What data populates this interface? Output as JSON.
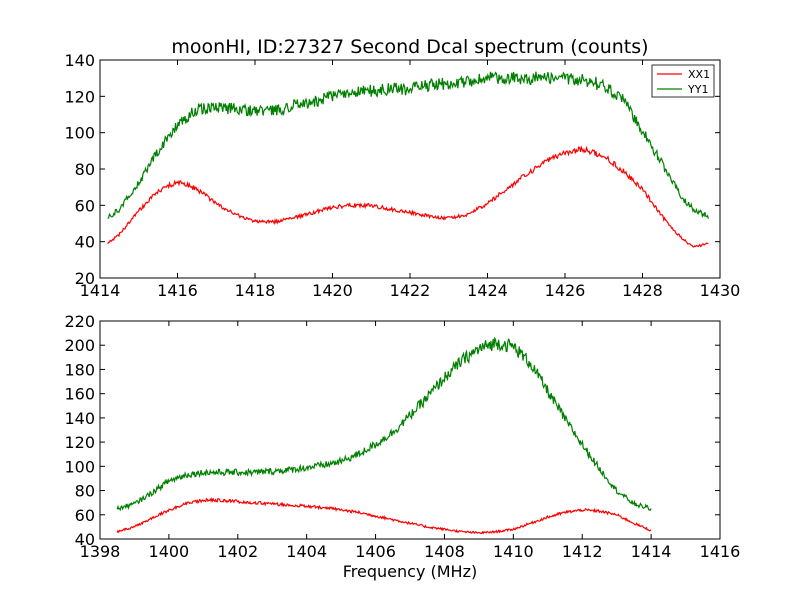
{
  "chart_data": [
    {
      "type": "line",
      "title": "moonHI, ID:27327 Second Dcal spectrum (counts)",
      "xlabel": "",
      "ylabel": "",
      "xlim": [
        1414,
        1430
      ],
      "ylim": [
        20,
        140
      ],
      "xticks": [
        "1414",
        "1416",
        "1418",
        "1420",
        "1422",
        "1424",
        "1426",
        "1428",
        "1430"
      ],
      "yticks": [
        "20",
        "40",
        "60",
        "80",
        "100",
        "120",
        "140"
      ],
      "legend": {
        "placement": "top-right",
        "entries": [
          "XX1",
          "YY1"
        ]
      },
      "grid": false,
      "series": [
        {
          "name": "XX1",
          "color": "#ff0000",
          "x": [
            1414.2,
            1414.5,
            1415.0,
            1415.5,
            1416.0,
            1416.5,
            1417.0,
            1417.5,
            1418.0,
            1418.5,
            1419.0,
            1419.5,
            1420.0,
            1420.5,
            1421.0,
            1421.5,
            1422.0,
            1422.5,
            1423.0,
            1423.5,
            1424.0,
            1424.5,
            1425.0,
            1425.5,
            1426.0,
            1426.5,
            1427.0,
            1427.5,
            1428.0,
            1428.5,
            1429.0,
            1429.3,
            1429.7
          ],
          "y": [
            39,
            44,
            57,
            68,
            73,
            69,
            61,
            55,
            51,
            51,
            53,
            56,
            59,
            60,
            60,
            58,
            56,
            54,
            53,
            55,
            61,
            69,
            77,
            84,
            89,
            91,
            87,
            79,
            69,
            54,
            42,
            37,
            39
          ]
        },
        {
          "name": "YY1",
          "color": "#008000",
          "x": [
            1414.2,
            1414.5,
            1415.0,
            1415.5,
            1416.0,
            1416.5,
            1417.0,
            1417.5,
            1418.0,
            1418.5,
            1419.0,
            1419.5,
            1420.0,
            1420.5,
            1421.0,
            1421.5,
            1422.0,
            1422.5,
            1423.0,
            1423.5,
            1424.0,
            1424.5,
            1425.0,
            1425.5,
            1426.0,
            1426.5,
            1427.0,
            1427.5,
            1428.0,
            1428.5,
            1429.0,
            1429.3,
            1429.7
          ],
          "y": [
            53,
            58,
            72,
            90,
            104,
            113,
            114,
            113,
            112,
            112,
            115,
            117,
            120,
            122,
            123,
            124,
            124,
            126,
            127,
            128,
            130,
            130,
            130,
            130,
            130,
            129,
            126,
            118,
            101,
            83,
            65,
            58,
            54
          ]
        }
      ]
    },
    {
      "type": "line",
      "title": "",
      "xlabel": "Frequency (MHz)",
      "ylabel": "",
      "xlim": [
        1398,
        1416
      ],
      "ylim": [
        40,
        220
      ],
      "xticks": [
        "1398",
        "1400",
        "1402",
        "1404",
        "1406",
        "1408",
        "1410",
        "1412",
        "1414",
        "1416"
      ],
      "yticks": [
        "40",
        "60",
        "80",
        "100",
        "120",
        "140",
        "160",
        "180",
        "200",
        "220"
      ],
      "grid": false,
      "series": [
        {
          "color": "#ff0000",
          "x": [
            1398.5,
            1399.0,
            1399.5,
            1400.0,
            1400.5,
            1401.0,
            1401.5,
            1402.0,
            1402.5,
            1403.0,
            1403.5,
            1404.0,
            1404.5,
            1405.0,
            1405.5,
            1406.0,
            1406.5,
            1407.0,
            1407.5,
            1408.0,
            1408.5,
            1409.0,
            1409.5,
            1410.0,
            1410.5,
            1411.0,
            1411.5,
            1412.0,
            1412.5,
            1413.0,
            1413.5,
            1414.0
          ],
          "y": [
            46,
            50,
            57,
            64,
            69,
            72,
            72,
            71,
            70,
            69,
            68,
            67,
            66,
            64,
            62,
            59,
            56,
            53,
            50,
            48,
            46,
            45,
            46,
            48,
            53,
            58,
            62,
            64,
            63,
            60,
            53,
            47
          ]
        },
        {
          "color": "#008000",
          "x": [
            1398.5,
            1399.0,
            1399.5,
            1400.0,
            1400.5,
            1401.0,
            1401.5,
            1402.0,
            1402.5,
            1403.0,
            1403.5,
            1404.0,
            1404.5,
            1405.0,
            1405.5,
            1406.0,
            1406.5,
            1407.0,
            1407.5,
            1408.0,
            1408.5,
            1409.0,
            1409.5,
            1410.0,
            1410.5,
            1411.0,
            1411.5,
            1412.0,
            1412.5,
            1413.0,
            1413.5,
            1414.0
          ],
          "y": [
            65,
            69,
            78,
            88,
            93,
            95,
            95,
            95,
            95,
            96,
            97,
            99,
            101,
            104,
            110,
            118,
            128,
            142,
            157,
            173,
            187,
            197,
            202,
            199,
            185,
            162,
            139,
            118,
            98,
            80,
            69,
            65
          ]
        }
      ]
    }
  ]
}
